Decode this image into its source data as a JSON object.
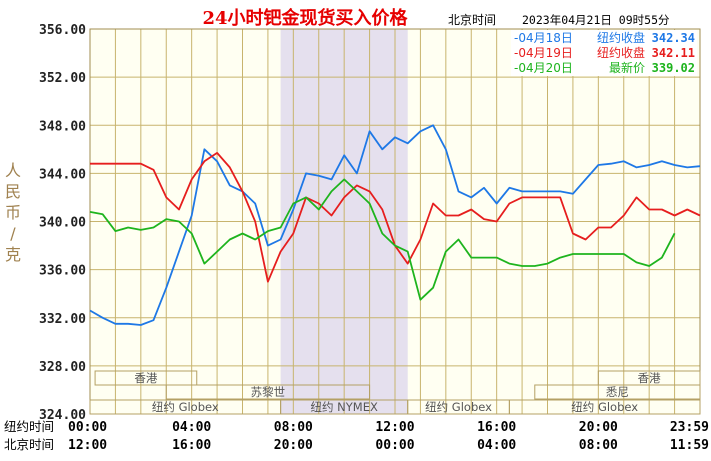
{
  "chart_data": {
    "type": "line",
    "title": "24小时钯金现货买入价格",
    "header_zone": "北京时间",
    "header_timestamp": "2023年04月21日 09时55分",
    "ylabel": "人民币/克",
    "ylim": [
      324,
      356
    ],
    "y_ticks": [
      "356.00",
      "352.00",
      "348.00",
      "344.00",
      "340.00",
      "336.00",
      "332.00",
      "328.00",
      "324.00"
    ],
    "x_rows": [
      {
        "label": "纽约时间",
        "ticks": [
          "00:00",
          "04:00",
          "08:00",
          "12:00",
          "16:00",
          "20:00",
          "23:59"
        ]
      },
      {
        "label": "北京时间",
        "ticks": [
          "12:00",
          "16:00",
          "20:00",
          "00:00",
          "04:00",
          "08:00",
          "11:59"
        ]
      }
    ],
    "x_hours": [
      0,
      4,
      8,
      12,
      16,
      20,
      24
    ],
    "highlight_hours": [
      7.5,
      12.5
    ],
    "grid": true,
    "legend_position": "top-right",
    "series": [
      {
        "legend_date": "04月18日",
        "legend_kind": "纽约收盘",
        "legend_value": "342.34",
        "color": "#1e78e6",
        "x": [
          0,
          0.5,
          1,
          1.5,
          2,
          2.5,
          3,
          3.5,
          4,
          4.5,
          5,
          5.5,
          6,
          6.5,
          7,
          7.5,
          8,
          8.5,
          9,
          9.5,
          10,
          10.5,
          11,
          11.5,
          12,
          12.5,
          13,
          13.5,
          14,
          14.5,
          15,
          15.5,
          16,
          16.5,
          17,
          17.5,
          18,
          18.5,
          19,
          19.5,
          20,
          20.5,
          21,
          21.5,
          22,
          22.5,
          23,
          23.5,
          24
        ],
        "y": [
          332.6,
          332.0,
          331.5,
          331.5,
          331.4,
          331.8,
          334.5,
          337.5,
          340.5,
          346.0,
          345.0,
          343.0,
          342.5,
          341.5,
          338.0,
          338.5,
          341.0,
          344.0,
          343.8,
          343.5,
          345.5,
          344.0,
          347.5,
          346.0,
          347.0,
          346.5,
          347.5,
          348.0,
          346.0,
          342.5,
          342.0,
          342.8,
          341.5,
          342.8,
          342.5,
          342.5,
          342.5,
          342.5,
          342.3,
          343.5,
          344.7,
          344.8,
          345.0,
          344.5,
          344.7,
          345.0,
          344.7,
          344.5,
          344.6
        ]
      },
      {
        "legend_date": "04月19日",
        "legend_kind": "纽约收盘",
        "legend_value": "342.11",
        "color": "#e61e1e",
        "x": [
          0,
          0.5,
          1,
          1.5,
          2,
          2.5,
          3,
          3.5,
          4,
          4.5,
          5,
          5.5,
          6,
          6.5,
          7,
          7.5,
          8,
          8.5,
          9,
          9.5,
          10,
          10.5,
          11,
          11.5,
          12,
          12.5,
          13,
          13.5,
          14,
          14.5,
          15,
          15.5,
          16,
          16.5,
          17,
          17.5,
          18,
          18.5,
          19,
          19.5,
          20,
          20.5,
          21,
          21.5,
          22,
          22.5,
          23,
          23.5,
          24
        ],
        "y": [
          344.8,
          344.8,
          344.8,
          344.8,
          344.8,
          344.3,
          342.0,
          341.0,
          343.5,
          345.0,
          345.7,
          344.5,
          342.5,
          340.0,
          335.0,
          337.5,
          339.0,
          342.0,
          341.5,
          340.5,
          342.0,
          343.0,
          342.5,
          341.0,
          338.0,
          336.5,
          338.5,
          341.5,
          340.5,
          340.5,
          341.0,
          340.2,
          340.0,
          341.5,
          342.0,
          342.0,
          342.0,
          342.0,
          339.0,
          338.5,
          339.5,
          339.5,
          340.5,
          342.0,
          341.0,
          341.0,
          340.5,
          341.0,
          340.5
        ]
      },
      {
        "legend_date": "04月20日",
        "legend_kind": "最新价",
        "legend_value": "339.02",
        "color": "#1eb41e",
        "x": [
          0,
          0.5,
          1,
          1.5,
          2,
          2.5,
          3,
          3.5,
          4,
          4.5,
          5,
          5.5,
          6,
          6.5,
          7,
          7.5,
          8,
          8.5,
          9,
          9.5,
          10,
          10.5,
          11,
          11.5,
          12,
          12.5,
          13,
          13.5,
          14,
          14.5,
          15,
          15.5,
          16,
          16.5,
          17,
          17.5,
          18,
          18.5,
          19,
          19.5,
          20,
          20.5,
          21,
          21.5,
          22,
          22.5,
          23
        ],
        "y": [
          340.8,
          340.6,
          339.2,
          339.5,
          339.3,
          339.5,
          340.2,
          340.0,
          339.0,
          336.5,
          337.5,
          338.5,
          339.0,
          338.5,
          339.2,
          339.5,
          341.5,
          342.0,
          341.0,
          342.5,
          343.5,
          342.5,
          341.5,
          339.0,
          338.0,
          337.5,
          333.5,
          334.5,
          337.5,
          338.5,
          337.0,
          337.0,
          337.0,
          336.5,
          336.3,
          336.3,
          336.5,
          337.0,
          337.3,
          337.3,
          337.3,
          337.3,
          337.3,
          336.6,
          336.3,
          337.0,
          339.02
        ]
      }
    ],
    "session_bands": [
      {
        "name": "香港",
        "start": 0.2,
        "end": 4.2
      },
      {
        "name": "苏黎世",
        "start": 3.0,
        "end": 11.0
      },
      {
        "name": "纽约 Globex",
        "start": 0.0,
        "end": 7.5
      },
      {
        "name": "纽约 NYMEX",
        "start": 7.5,
        "end": 12.5
      },
      {
        "name": "纽约 Globex",
        "start": 12.5,
        "end": 16.5
      },
      {
        "name": "纽约 Globex",
        "start": 16.5,
        "end": 24.0
      },
      {
        "name": "香港",
        "start": 20.0,
        "end": 24.0
      },
      {
        "name": "悉尼",
        "start": 17.5,
        "end": 24.0
      }
    ]
  }
}
